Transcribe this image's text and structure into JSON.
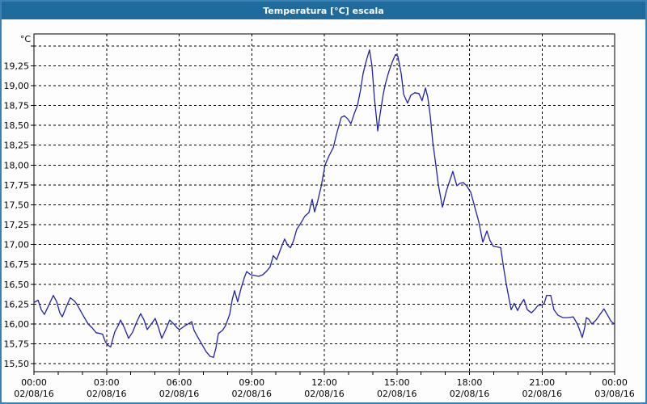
{
  "window": {
    "title": "Temperatura [°C] escala",
    "colors": {
      "title_bar": "#1f6b9e",
      "title_text": "#ffffff",
      "border": "#3d80b2",
      "background": "#fdfdfd"
    }
  },
  "chart_data": {
    "type": "line",
    "title": "Temperatura [°C] escala",
    "xlabel": "",
    "ylabel": "°C",
    "grid": "dashed",
    "legend": "none",
    "frame_color": "#000000",
    "grid_color": "#000000",
    "text_color": "#000000",
    "y_axis": {
      "unit_label": "°C",
      "min": 15.4,
      "max": 19.65,
      "gridline_values": [
        15.5,
        15.75,
        16.0,
        16.25,
        16.5,
        16.75,
        17.0,
        17.25,
        17.5,
        17.75,
        18.0,
        18.25,
        18.5,
        18.75,
        19.0,
        19.25,
        19.5
      ],
      "ticks": [
        {
          "value": 19.25,
          "label": "19,25"
        },
        {
          "value": 19.0,
          "label": "19,00"
        },
        {
          "value": 18.75,
          "label": "18,75"
        },
        {
          "value": 18.5,
          "label": "18,50"
        },
        {
          "value": 18.25,
          "label": "18,25"
        },
        {
          "value": 18.0,
          "label": "18,00"
        },
        {
          "value": 17.75,
          "label": "17,75"
        },
        {
          "value": 17.5,
          "label": "17,50"
        },
        {
          "value": 17.25,
          "label": "17,25"
        },
        {
          "value": 17.0,
          "label": "17,00"
        },
        {
          "value": 16.75,
          "label": "16,75"
        },
        {
          "value": 16.5,
          "label": "16,50"
        },
        {
          "value": 16.25,
          "label": "16,25"
        },
        {
          "value": 16.0,
          "label": "16,00"
        },
        {
          "value": 15.75,
          "label": "15,75"
        },
        {
          "value": 15.5,
          "label": "15,50"
        }
      ]
    },
    "x_axis": {
      "min": 0,
      "max": 24,
      "major_tick_hours": 3,
      "minor_tick_hours": 1,
      "labels": [
        {
          "time": "00:00",
          "date": "02/08/16"
        },
        {
          "time": "03:00",
          "date": "02/08/16"
        },
        {
          "time": "06:00",
          "date": "02/08/16"
        },
        {
          "time": "09:00",
          "date": "02/08/16"
        },
        {
          "time": "12:00",
          "date": "02/08/16"
        },
        {
          "time": "15:00",
          "date": "02/08/16"
        },
        {
          "time": "18:00",
          "date": "02/08/16"
        },
        {
          "time": "21:00",
          "date": "02/08/16"
        },
        {
          "time": "00:00",
          "date": "03/08/16"
        }
      ]
    },
    "series": [
      {
        "name": "temperatura",
        "color": "#2121aa",
        "points": [
          [
            0.0,
            16.27
          ],
          [
            0.17,
            16.3
          ],
          [
            0.3,
            16.18
          ],
          [
            0.43,
            16.12
          ],
          [
            0.6,
            16.23
          ],
          [
            0.8,
            16.36
          ],
          [
            0.94,
            16.28
          ],
          [
            1.07,
            16.14
          ],
          [
            1.17,
            16.09
          ],
          [
            1.34,
            16.22
          ],
          [
            1.5,
            16.33
          ],
          [
            1.67,
            16.29
          ],
          [
            1.77,
            16.25
          ],
          [
            2.01,
            16.12
          ],
          [
            2.24,
            16.0
          ],
          [
            2.41,
            15.95
          ],
          [
            2.57,
            15.89
          ],
          [
            2.74,
            15.88
          ],
          [
            2.84,
            15.87
          ],
          [
            2.94,
            15.78
          ],
          [
            3.07,
            15.73
          ],
          [
            3.17,
            15.71
          ],
          [
            3.34,
            15.9
          ],
          [
            3.48,
            15.98
          ],
          [
            3.58,
            16.05
          ],
          [
            3.74,
            15.95
          ],
          [
            3.91,
            15.82
          ],
          [
            4.08,
            15.9
          ],
          [
            4.24,
            16.02
          ],
          [
            4.41,
            16.13
          ],
          [
            4.55,
            16.05
          ],
          [
            4.68,
            15.93
          ],
          [
            4.85,
            16.0
          ],
          [
            5.01,
            16.07
          ],
          [
            5.15,
            15.95
          ],
          [
            5.28,
            15.82
          ],
          [
            5.45,
            15.93
          ],
          [
            5.61,
            16.05
          ],
          [
            5.78,
            16.0
          ],
          [
            5.92,
            15.95
          ],
          [
            6.02,
            15.93
          ],
          [
            6.25,
            15.98
          ],
          [
            6.42,
            16.01
          ],
          [
            6.52,
            16.03
          ],
          [
            6.62,
            15.92
          ],
          [
            6.78,
            15.83
          ],
          [
            6.95,
            15.74
          ],
          [
            7.12,
            15.65
          ],
          [
            7.29,
            15.59
          ],
          [
            7.42,
            15.58
          ],
          [
            7.52,
            15.7
          ],
          [
            7.62,
            15.88
          ],
          [
            7.79,
            15.92
          ],
          [
            7.92,
            15.98
          ],
          [
            8.09,
            16.12
          ],
          [
            8.19,
            16.3
          ],
          [
            8.29,
            16.42
          ],
          [
            8.42,
            16.28
          ],
          [
            8.56,
            16.45
          ],
          [
            8.69,
            16.58
          ],
          [
            8.79,
            16.66
          ],
          [
            8.96,
            16.62
          ],
          [
            9.12,
            16.61
          ],
          [
            9.29,
            16.6
          ],
          [
            9.46,
            16.62
          ],
          [
            9.63,
            16.67
          ],
          [
            9.76,
            16.72
          ],
          [
            9.89,
            16.86
          ],
          [
            10.03,
            16.81
          ],
          [
            10.19,
            16.94
          ],
          [
            10.36,
            17.07
          ],
          [
            10.49,
            16.99
          ],
          [
            10.6,
            16.96
          ],
          [
            10.73,
            17.05
          ],
          [
            10.86,
            17.19
          ],
          [
            11.03,
            17.27
          ],
          [
            11.2,
            17.36
          ],
          [
            11.36,
            17.4
          ],
          [
            11.5,
            17.57
          ],
          [
            11.6,
            17.41
          ],
          [
            11.73,
            17.55
          ],
          [
            11.87,
            17.73
          ],
          [
            12.03,
            18.0
          ],
          [
            12.2,
            18.12
          ],
          [
            12.37,
            18.22
          ],
          [
            12.53,
            18.42
          ],
          [
            12.7,
            18.6
          ],
          [
            12.83,
            18.62
          ],
          [
            12.97,
            18.58
          ],
          [
            13.1,
            18.52
          ],
          [
            13.24,
            18.65
          ],
          [
            13.37,
            18.75
          ],
          [
            13.5,
            18.95
          ],
          [
            13.6,
            19.15
          ],
          [
            13.74,
            19.32
          ],
          [
            13.87,
            19.45
          ],
          [
            13.97,
            19.25
          ],
          [
            14.07,
            18.85
          ],
          [
            14.21,
            18.43
          ],
          [
            14.31,
            18.65
          ],
          [
            14.44,
            18.9
          ],
          [
            14.54,
            19.04
          ],
          [
            14.67,
            19.18
          ],
          [
            14.81,
            19.3
          ],
          [
            14.94,
            19.39
          ],
          [
            15.04,
            19.37
          ],
          [
            15.18,
            19.15
          ],
          [
            15.28,
            18.89
          ],
          [
            15.44,
            18.78
          ],
          [
            15.58,
            18.88
          ],
          [
            15.74,
            18.91
          ],
          [
            15.91,
            18.9
          ],
          [
            16.04,
            18.81
          ],
          [
            16.18,
            18.97
          ],
          [
            16.28,
            18.85
          ],
          [
            16.38,
            18.62
          ],
          [
            16.48,
            18.3
          ],
          [
            16.61,
            18.0
          ],
          [
            16.71,
            17.76
          ],
          [
            16.88,
            17.47
          ],
          [
            17.05,
            17.68
          ],
          [
            17.18,
            17.8
          ],
          [
            17.31,
            17.92
          ],
          [
            17.48,
            17.74
          ],
          [
            17.61,
            17.77
          ],
          [
            17.75,
            17.78
          ],
          [
            17.88,
            17.74
          ],
          [
            18.05,
            17.66
          ],
          [
            18.21,
            17.48
          ],
          [
            18.38,
            17.29
          ],
          [
            18.55,
            17.03
          ],
          [
            18.72,
            17.17
          ],
          [
            18.85,
            17.05
          ],
          [
            18.98,
            16.98
          ],
          [
            19.15,
            16.97
          ],
          [
            19.29,
            16.96
          ],
          [
            19.39,
            16.75
          ],
          [
            19.52,
            16.5
          ],
          [
            19.72,
            16.18
          ],
          [
            19.85,
            16.26
          ],
          [
            19.99,
            16.17
          ],
          [
            20.12,
            16.25
          ],
          [
            20.25,
            16.31
          ],
          [
            20.39,
            16.18
          ],
          [
            20.56,
            16.14
          ],
          [
            20.69,
            16.18
          ],
          [
            20.82,
            16.23
          ],
          [
            20.99,
            16.24
          ],
          [
            21.09,
            16.26
          ],
          [
            21.19,
            16.36
          ],
          [
            21.36,
            16.36
          ],
          [
            21.49,
            16.18
          ],
          [
            21.66,
            16.11
          ],
          [
            21.86,
            16.08
          ],
          [
            22.06,
            16.08
          ],
          [
            22.29,
            16.09
          ],
          [
            22.46,
            16.0
          ],
          [
            22.56,
            15.92
          ],
          [
            22.66,
            15.83
          ],
          [
            22.76,
            15.95
          ],
          [
            22.83,
            16.08
          ],
          [
            22.93,
            16.06
          ],
          [
            23.06,
            16.0
          ],
          [
            23.23,
            16.05
          ],
          [
            23.39,
            16.12
          ],
          [
            23.56,
            16.19
          ],
          [
            23.73,
            16.1
          ],
          [
            23.86,
            16.03
          ],
          [
            24.0,
            16.0
          ]
        ]
      }
    ]
  }
}
